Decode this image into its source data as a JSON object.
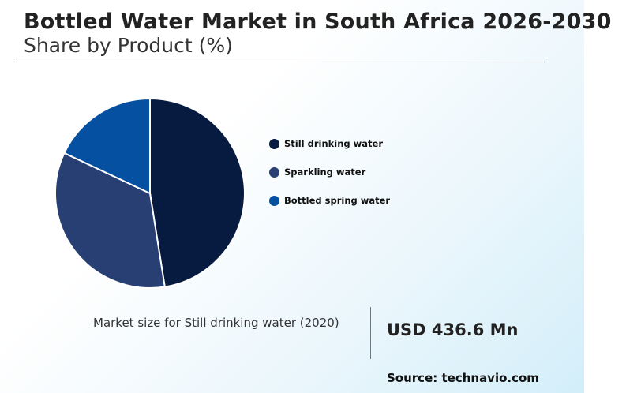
{
  "header": {
    "title": "Bottled Water Market in South Africa 2026-2030",
    "subtitle": "Share by Product (%)"
  },
  "chart_data": {
    "type": "pie",
    "categories": [
      "Still drinking water",
      "Sparkling water",
      "Bottled spring water"
    ],
    "values": [
      47.5,
      34.5,
      18.0
    ],
    "colors": [
      "#071a40",
      "#283f73",
      "#0550a0"
    ],
    "legend_position": "right"
  },
  "callout": {
    "label": "Market size for Still drinking water (2020)",
    "value": "USD 436.6 Mn"
  },
  "footer": {
    "source": "Source: technavio.com"
  }
}
